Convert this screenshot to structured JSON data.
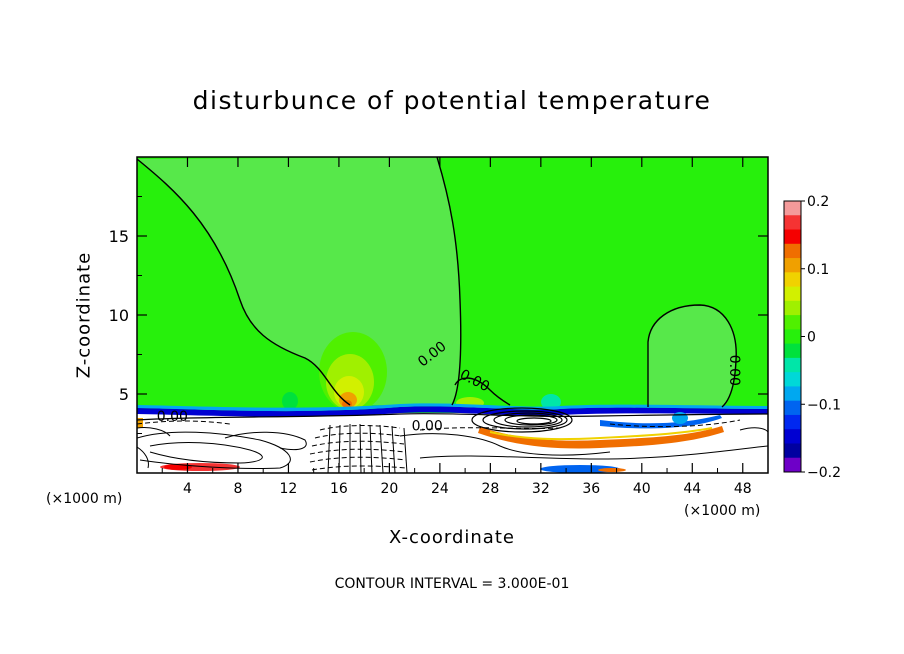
{
  "title": "disturbunce of potential temperature",
  "footer": "CONTOUR INTERVAL = 3.000E-01",
  "colors": {
    "background_field": "#27f00c",
    "near_zero": "#57e84a",
    "frame": "#000000"
  },
  "chart_data": {
    "type": "heatmap",
    "title": "disturbunce of potential temperature",
    "xlabel": "X-coordinate",
    "ylabel": "Z-coordinate",
    "xunit_left": "(×1000 m)",
    "xunit_right": "(×1000 m)",
    "xlim": [
      0,
      50
    ],
    "ylim": [
      0,
      20
    ],
    "xticks": [
      4,
      8,
      12,
      16,
      20,
      24,
      28,
      32,
      36,
      40,
      44,
      48
    ],
    "yticks": [
      5,
      10,
      15
    ],
    "contour_interval": "3.000E-01",
    "contour_labels": [
      {
        "text": "0.00",
        "x": 2.8,
        "z": 3.3,
        "angle": 0
      },
      {
        "text": "0.00",
        "x": 23.6,
        "z": 7.3,
        "angle": -38
      },
      {
        "text": "0.00",
        "x": 26.6,
        "z": 5.6,
        "angle": 28
      },
      {
        "text": "0.00",
        "x": 23.0,
        "z": 2.7,
        "angle": 0
      },
      {
        "text": "0.00",
        "x": 47.0,
        "z": 6.5,
        "angle": 90
      }
    ],
    "colorbar": {
      "min": -0.2,
      "max": 0.2,
      "ticks": [
        0.2,
        0.1,
        0,
        -0.1,
        -0.2
      ],
      "tick_labels": [
        "0.2",
        "0.1",
        "0",
        "−0.1",
        "−0.2"
      ],
      "colors": [
        "#f49a9a",
        "#f53333",
        "#f50000",
        "#f06e00",
        "#f0a000",
        "#f0d200",
        "#d2f000",
        "#a0f000",
        "#50f000",
        "#27f00c",
        "#00e13c",
        "#00e6a8",
        "#00d8d8",
        "#00a8f0",
        "#0064f0",
        "#0028f0",
        "#0000d2",
        "#0000a0",
        "#6e00c8"
      ]
    }
  }
}
